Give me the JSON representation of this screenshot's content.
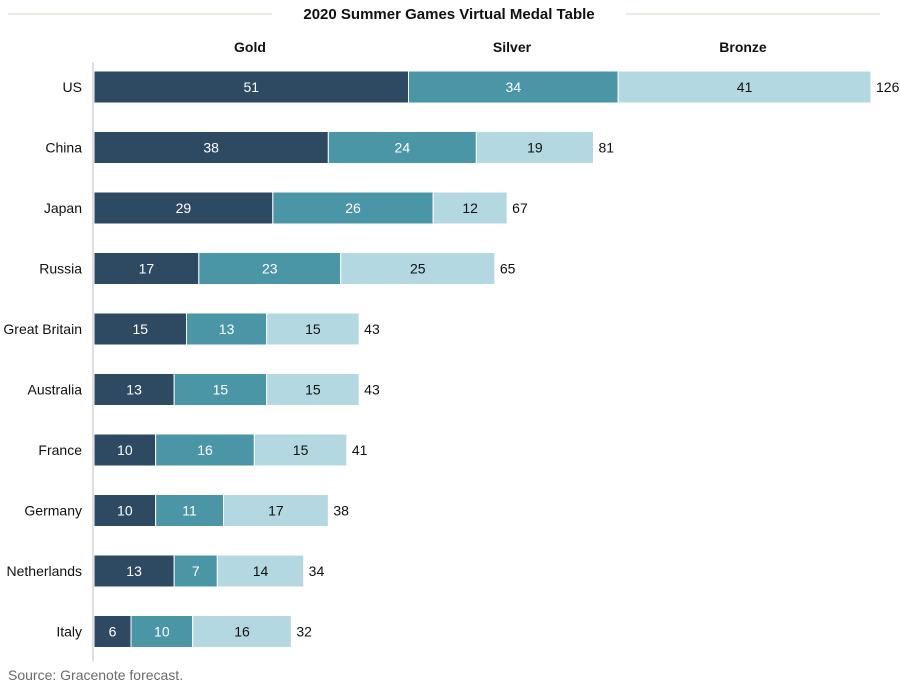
{
  "chart_data": {
    "type": "bar",
    "orientation": "horizontal",
    "stacked": true,
    "title": "2020 Summer Games Virtual Medal Table",
    "categories": [
      "US",
      "China",
      "Japan",
      "Russia",
      "Great Britain",
      "Australia",
      "France",
      "Germany",
      "Netherlands",
      "Italy"
    ],
    "series": [
      {
        "name": "Gold",
        "color": "#2e4a63",
        "label_color": "#ffffff",
        "values": [
          51,
          38,
          29,
          17,
          15,
          13,
          10,
          10,
          13,
          6
        ]
      },
      {
        "name": "Silver",
        "color": "#4a96a6",
        "label_color": "#ffffff",
        "values": [
          34,
          24,
          26,
          23,
          13,
          15,
          16,
          11,
          7,
          10
        ]
      },
      {
        "name": "Bronze",
        "color": "#b4d8e1",
        "label_color": "#111111",
        "values": [
          41,
          19,
          12,
          25,
          15,
          15,
          15,
          17,
          14,
          16
        ]
      }
    ],
    "totals": [
      126,
      81,
      67,
      65,
      43,
      43,
      41,
      38,
      34,
      32
    ],
    "xlim": [
      0,
      126
    ],
    "legend_position": "top",
    "grid": false,
    "xlabel": "",
    "ylabel": ""
  },
  "footer": {
    "source": "Source: Gracenote forecast."
  },
  "colors": {
    "title_rule": "#d8d8c4",
    "axis_line": "#bfbfbf",
    "bar_border": "#ffffff"
  }
}
